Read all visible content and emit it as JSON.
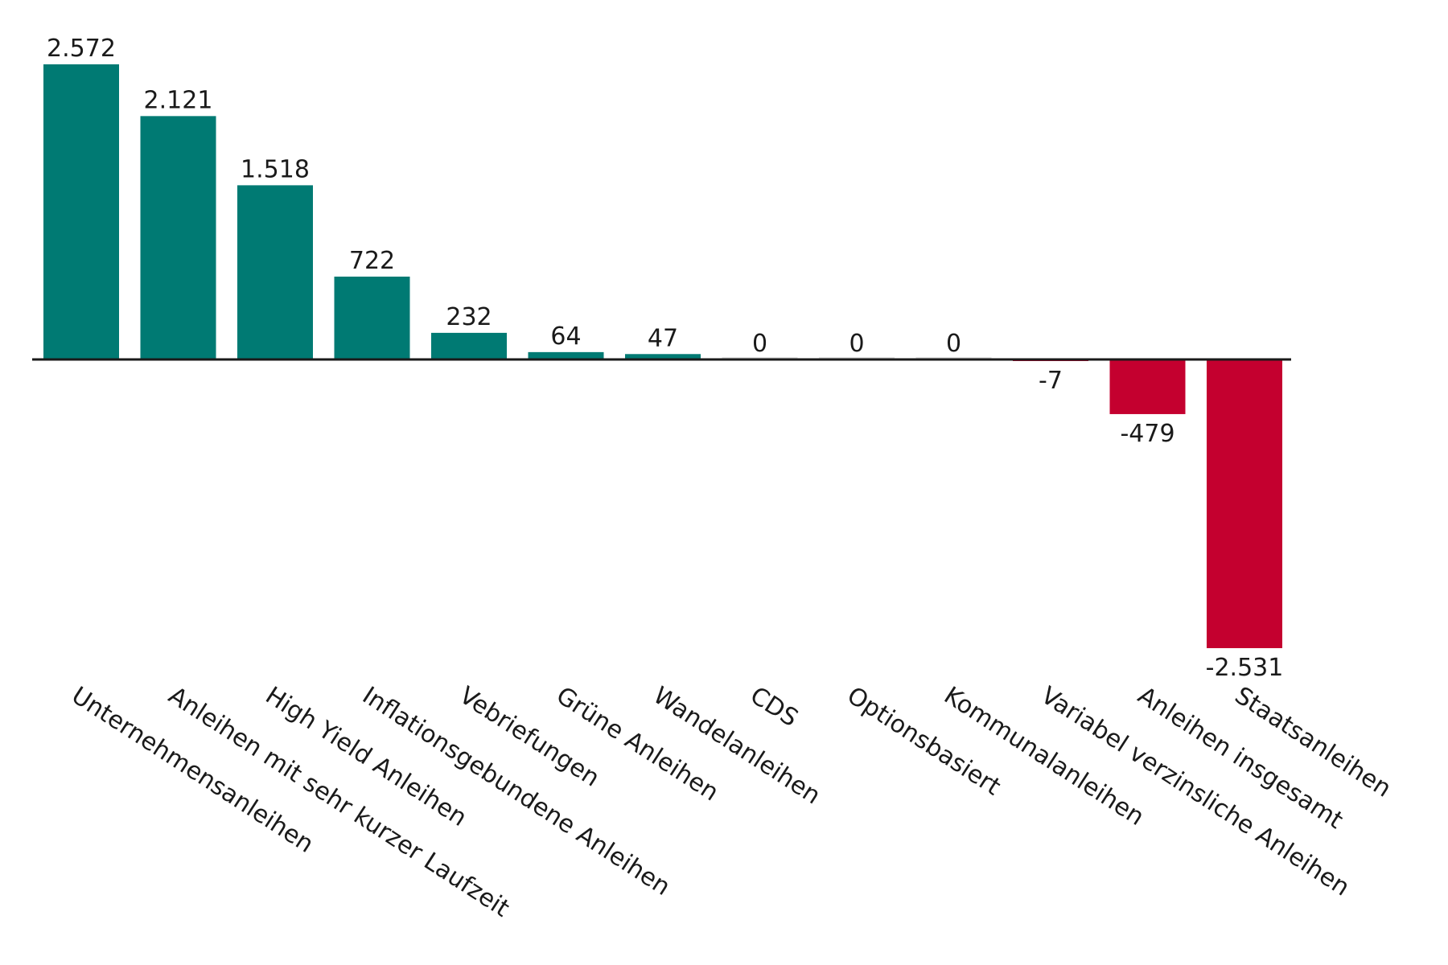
{
  "chart_data": {
    "type": "bar",
    "title": "",
    "xlabel": "",
    "ylabel": "",
    "categories": [
      "Unternehmensanleihen",
      "Anleihen mit sehr kurzer Laufzeit",
      "High Yield Anleihen",
      "Inflationsgebundene Anleihen",
      "Vebriefungen",
      "Grüne Anleihen",
      "Wandelanleihen",
      "CDS",
      "Optionsbasiert",
      "Kommunalanleihen",
      "Variabel verzinsliche Anleihen",
      "Anleihen insgesamt",
      "Staatsanleihen"
    ],
    "values": [
      2572,
      2121,
      1518,
      722,
      232,
      64,
      47,
      0,
      0,
      0,
      -7,
      -479,
      -2531
    ],
    "value_labels": [
      "2.572",
      "2.121",
      "1.518",
      "722",
      "232",
      "64",
      "47",
      "0",
      "0",
      "0",
      "-7",
      "-479",
      "-2.531"
    ],
    "ylim": [
      -2531,
      2572
    ],
    "grid": false,
    "legend": "none",
    "colors": {
      "positive": "#007A73",
      "negative": "#C4002F",
      "zero": "#dcdcdc",
      "axis": "#1a1a1a"
    }
  }
}
